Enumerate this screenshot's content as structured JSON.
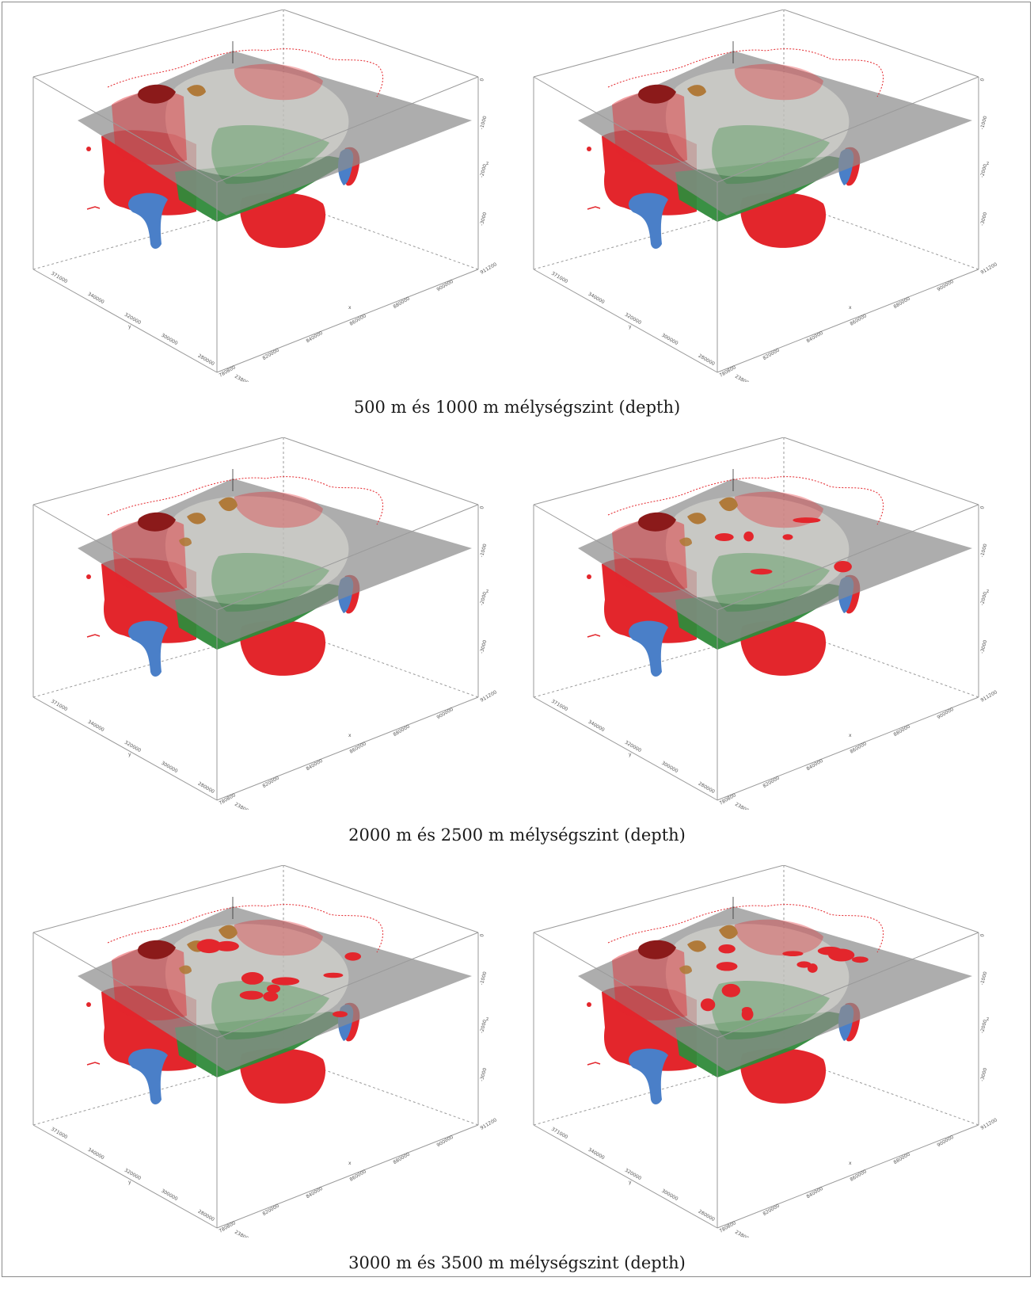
{
  "figure_rows": [
    {
      "caption": "500 m és 1000 m mélységszint (depth)",
      "panels": [
        {
          "id": "depth-500",
          "red_blobs": 0
        },
        {
          "id": "depth-1000",
          "red_blobs": 0
        }
      ]
    },
    {
      "caption": "2000 m és 2500 m mélységszint (depth)",
      "panels": [
        {
          "id": "depth-2000",
          "red_blobs": 0
        },
        {
          "id": "depth-2500",
          "red_blobs": 6
        }
      ]
    },
    {
      "caption": "3000 m és 3500 m mélységszint (depth)",
      "panels": [
        {
          "id": "depth-3000",
          "red_blobs": 10
        },
        {
          "id": "depth-3500",
          "red_blobs": 12
        }
      ]
    }
  ],
  "axis": {
    "x_label": "x",
    "y_label": "y",
    "z_label": "z",
    "x_ticks": [
      "780800",
      "820000",
      "840000",
      "860000",
      "880000",
      "900000",
      "911200"
    ],
    "y_ticks": [
      "238000",
      "280000",
      "300000",
      "320000",
      "340000",
      "371000"
    ],
    "z_ticks": [
      "0",
      "-1000",
      "-2000",
      "-3000"
    ]
  },
  "colors": {
    "background": "#ffffff",
    "frame": "#8a8a8a",
    "box_edges": "#9a9a9a",
    "plane": "#8d8d8d",
    "body_red": "#e3262c",
    "body_dark_red": "#8b1a1a",
    "body_blue": "#4a7fc8",
    "green": "#2f8a3a",
    "brown": "#b07a3a",
    "pale": "#e8e8e0"
  }
}
